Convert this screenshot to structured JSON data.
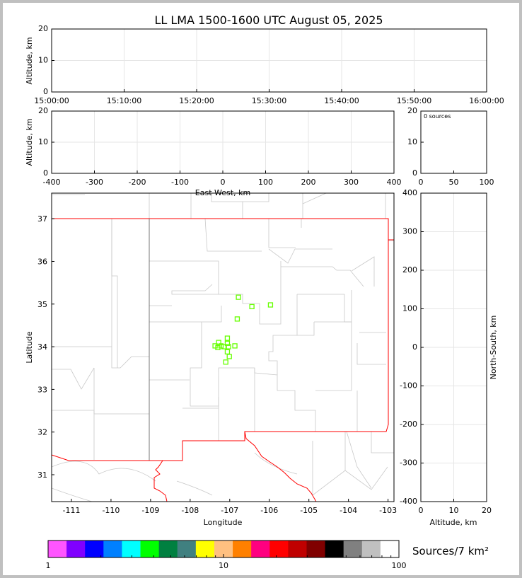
{
  "title": "LL LMA 1500-1600 UTC August 05, 2025",
  "colors": {
    "points": "#66ff00",
    "border_state": "#ff0000",
    "county": "#c8c8c8",
    "grid": "#e6e6e6"
  },
  "chart_data": [
    {
      "id": "time-height",
      "type": "scatter",
      "ylabel": "Altitude, km",
      "xlabel": "",
      "xticks": [
        "15:00:00",
        "15:10:00",
        "15:20:00",
        "15:30:00",
        "15:40:00",
        "15:50:00",
        "16:00:00"
      ],
      "yticks": [
        0,
        10,
        20
      ],
      "ylim": [
        0,
        20
      ],
      "grid": true,
      "points": []
    },
    {
      "id": "ew-height",
      "type": "scatter",
      "ylabel": "Altitude, km",
      "xlabel": "East-West, km",
      "xticks": [
        -400,
        -300,
        -200,
        -100,
        0,
        100,
        200,
        300,
        400
      ],
      "xlim": [
        -400,
        400
      ],
      "yticks": [
        0,
        10,
        20
      ],
      "ylim": [
        0,
        20
      ],
      "grid": true,
      "points": []
    },
    {
      "id": "height-hist",
      "type": "bar",
      "annotation": "0 sources",
      "xticks": [
        0,
        50,
        100
      ],
      "xlim": [
        0,
        100
      ],
      "yticks": [
        0,
        10,
        20
      ],
      "ylim": [
        0,
        20
      ],
      "values": []
    },
    {
      "id": "plan-view",
      "type": "scatter",
      "xlabel": "Longitude",
      "ylabel": "Latitude",
      "xticks": [
        -111,
        -110,
        -109,
        -108,
        -107,
        -106,
        -105,
        -104,
        -103
      ],
      "xlim": [
        -111.5,
        -102.85
      ],
      "yticks": [
        31,
        32,
        33,
        34,
        35,
        36,
        37
      ],
      "ylim": [
        30.37,
        37.6
      ],
      "grid": false,
      "points": [
        {
          "lon": -106.78,
          "lat": 35.16
        },
        {
          "lon": -106.44,
          "lat": 34.94
        },
        {
          "lon": -105.97,
          "lat": 34.98
        },
        {
          "lon": -106.81,
          "lat": 34.65
        },
        {
          "lon": -107.06,
          "lat": 34.2
        },
        {
          "lon": -107.06,
          "lat": 34.08
        },
        {
          "lon": -107.28,
          "lat": 34.1
        },
        {
          "lon": -107.37,
          "lat": 34.02
        },
        {
          "lon": -107.3,
          "lat": 33.98
        },
        {
          "lon": -107.22,
          "lat": 34.02
        },
        {
          "lon": -107.15,
          "lat": 34.0
        },
        {
          "lon": -107.03,
          "lat": 34.0
        },
        {
          "lon": -106.87,
          "lat": 34.02
        },
        {
          "lon": -107.06,
          "lat": 33.88
        },
        {
          "lon": -107.01,
          "lat": 33.77
        },
        {
          "lon": -107.1,
          "lat": 33.64
        }
      ]
    },
    {
      "id": "ns-height",
      "type": "scatter",
      "ylabel": "North-South, km",
      "xlabel": "Altitude, km",
      "xticks": [
        0,
        10,
        20
      ],
      "xlim": [
        0,
        20
      ],
      "yticks": [
        -400,
        -300,
        -200,
        -100,
        0,
        100,
        200,
        300,
        400
      ],
      "ylim": [
        -400,
        400
      ],
      "grid": true,
      "points": []
    }
  ],
  "colorbar": {
    "label": "Sources/7 km²",
    "ticks": [
      "1",
      "10",
      "100"
    ],
    "scale": "log",
    "range": [
      1,
      100
    ],
    "colors": [
      "#ff55ff",
      "#8000ff",
      "#0000ff",
      "#0080ff",
      "#00ffff",
      "#00ff00",
      "#008040",
      "#408080",
      "#ffff00",
      "#ffc080",
      "#ff8000",
      "#ff0080",
      "#ff0000",
      "#c00000",
      "#800000",
      "#000000",
      "#808080",
      "#c0c0c0",
      "#ffffff"
    ]
  }
}
